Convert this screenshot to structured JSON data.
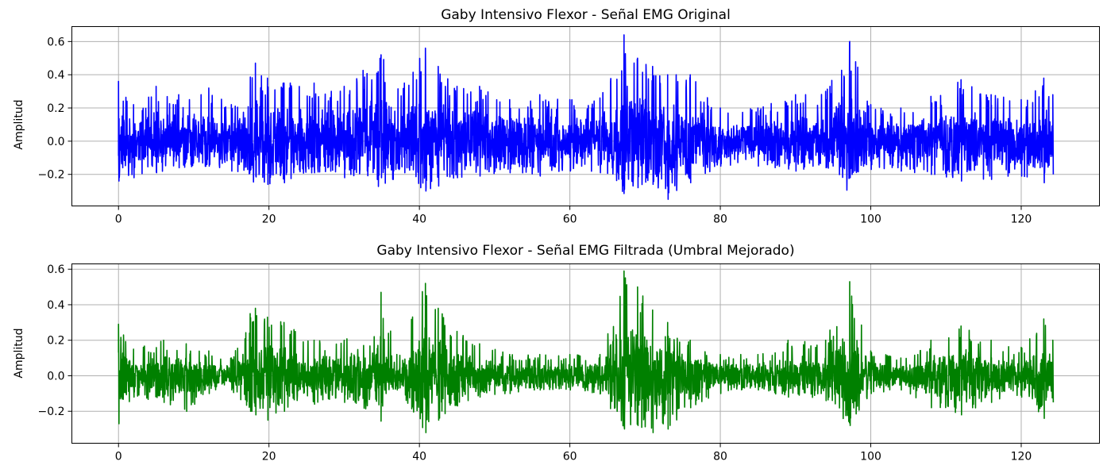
{
  "chart_data": [
    {
      "type": "line",
      "title": "Gaby Intensivo Flexor - Señal EMG Original",
      "xlabel": "",
      "ylabel": "Amplitud",
      "xlim": [
        -6.2,
        130.4
      ],
      "ylim": [
        -0.39,
        0.69
      ],
      "x_ticks": [
        0,
        20,
        40,
        60,
        80,
        100,
        120
      ],
      "x_tick_labels": [
        "0",
        "20",
        "40",
        "60",
        "80",
        "100",
        "120"
      ],
      "y_ticks": [
        -0.2,
        0.0,
        0.2,
        0.4,
        0.6
      ],
      "y_tick_labels": [
        "−0.2",
        "0.0",
        "0.2",
        "0.4",
        "0.6"
      ],
      "grid": true,
      "color": "#0000ff",
      "series": [
        {
          "x_range": [
            0,
            124.2
          ],
          "envelope": [
            {
              "x": 0,
              "max": 0.36,
              "min": -0.24
            },
            {
              "x": 2,
              "max": 0.22,
              "min": -0.22
            },
            {
              "x": 5,
              "max": 0.33,
              "min": -0.19
            },
            {
              "x": 8,
              "max": 0.28,
              "min": -0.16
            },
            {
              "x": 12,
              "max": 0.32,
              "min": -0.15
            },
            {
              "x": 15,
              "max": 0.22,
              "min": -0.18
            },
            {
              "x": 18.2,
              "max": 0.47,
              "min": -0.21
            },
            {
              "x": 19.8,
              "max": 0.38,
              "min": -0.26
            },
            {
              "x": 22,
              "max": 0.35,
              "min": -0.25
            },
            {
              "x": 26,
              "max": 0.35,
              "min": -0.19
            },
            {
              "x": 30,
              "max": 0.33,
              "min": -0.22
            },
            {
              "x": 34.9,
              "max": 0.52,
              "min": -0.22
            },
            {
              "x": 38,
              "max": 0.35,
              "min": -0.19
            },
            {
              "x": 40.8,
              "max": 0.56,
              "min": -0.3
            },
            {
              "x": 42.5,
              "max": 0.45,
              "min": -0.27
            },
            {
              "x": 45,
              "max": 0.33,
              "min": -0.22
            },
            {
              "x": 48,
              "max": 0.33,
              "min": -0.21
            },
            {
              "x": 52,
              "max": 0.25,
              "min": -0.19
            },
            {
              "x": 56,
              "max": 0.28,
              "min": -0.21
            },
            {
              "x": 60,
              "max": 0.25,
              "min": -0.18
            },
            {
              "x": 64,
              "max": 0.26,
              "min": -0.19
            },
            {
              "x": 67.2,
              "max": 0.64,
              "min": -0.29
            },
            {
              "x": 69,
              "max": 0.5,
              "min": -0.28
            },
            {
              "x": 71,
              "max": 0.45,
              "min": -0.26
            },
            {
              "x": 73,
              "max": 0.4,
              "min": -0.35
            },
            {
              "x": 76,
              "max": 0.4,
              "min": -0.25
            },
            {
              "x": 80,
              "max": 0.2,
              "min": -0.15
            },
            {
              "x": 85,
              "max": 0.2,
              "min": -0.15
            },
            {
              "x": 90,
              "max": 0.28,
              "min": -0.18
            },
            {
              "x": 94,
              "max": 0.3,
              "min": -0.16
            },
            {
              "x": 97.2,
              "max": 0.6,
              "min": -0.22
            },
            {
              "x": 100,
              "max": 0.22,
              "min": -0.17
            },
            {
              "x": 104,
              "max": 0.2,
              "min": -0.18
            },
            {
              "x": 108,
              "max": 0.27,
              "min": -0.2
            },
            {
              "x": 112,
              "max": 0.37,
              "min": -0.24
            },
            {
              "x": 116,
              "max": 0.28,
              "min": -0.23
            },
            {
              "x": 120,
              "max": 0.25,
              "min": -0.21
            },
            {
              "x": 123,
              "max": 0.38,
              "min": -0.25
            },
            {
              "x": 124.2,
              "max": 0.28,
              "min": -0.2
            }
          ]
        }
      ]
    },
    {
      "type": "line",
      "title": "Gaby Intensivo Flexor - Señal EMG Filtrada (Umbral Mejorado)",
      "xlabel": "",
      "ylabel": "Amplitud",
      "xlim": [
        -6.2,
        130.4
      ],
      "ylim": [
        -0.38,
        0.63
      ],
      "x_ticks": [
        0,
        20,
        40,
        60,
        80,
        100,
        120
      ],
      "x_tick_labels": [
        "0",
        "20",
        "40",
        "60",
        "80",
        "100",
        "120"
      ],
      "y_ticks": [
        -0.2,
        0.0,
        0.2,
        0.4,
        0.6
      ],
      "y_tick_labels": [
        "−0.2",
        "0.0",
        "0.2",
        "0.4",
        "0.6"
      ],
      "grid": true,
      "color": "#008000",
      "series": [
        {
          "x_range": [
            0,
            124.2
          ],
          "envelope": [
            {
              "x": 0,
              "max": 0.29,
              "min": -0.27
            },
            {
              "x": 2,
              "max": 0.15,
              "min": -0.12
            },
            {
              "x": 6,
              "max": 0.2,
              "min": -0.15
            },
            {
              "x": 9,
              "max": 0.18,
              "min": -0.2
            },
            {
              "x": 12,
              "max": 0.14,
              "min": -0.1
            },
            {
              "x": 15,
              "max": 0.1,
              "min": -0.08
            },
            {
              "x": 17.5,
              "max": 0.35,
              "min": -0.2
            },
            {
              "x": 18.2,
              "max": 0.38,
              "min": -0.22
            },
            {
              "x": 19.8,
              "max": 0.33,
              "min": -0.25
            },
            {
              "x": 22,
              "max": 0.3,
              "min": -0.2
            },
            {
              "x": 26,
              "max": 0.2,
              "min": -0.16
            },
            {
              "x": 30,
              "max": 0.2,
              "min": -0.15
            },
            {
              "x": 34.9,
              "max": 0.47,
              "min": -0.15
            },
            {
              "x": 37,
              "max": 0.12,
              "min": -0.08
            },
            {
              "x": 40.8,
              "max": 0.52,
              "min": -0.32
            },
            {
              "x": 42.5,
              "max": 0.38,
              "min": -0.25
            },
            {
              "x": 45,
              "max": 0.25,
              "min": -0.17
            },
            {
              "x": 48,
              "max": 0.18,
              "min": -0.12
            },
            {
              "x": 52,
              "max": 0.12,
              "min": -0.1
            },
            {
              "x": 56,
              "max": 0.12,
              "min": -0.08
            },
            {
              "x": 60,
              "max": 0.12,
              "min": -0.08
            },
            {
              "x": 64,
              "max": 0.12,
              "min": -0.1
            },
            {
              "x": 67.2,
              "max": 0.59,
              "min": -0.3
            },
            {
              "x": 69,
              "max": 0.5,
              "min": -0.28
            },
            {
              "x": 71,
              "max": 0.37,
              "min": -0.32
            },
            {
              "x": 73,
              "max": 0.3,
              "min": -0.3
            },
            {
              "x": 76,
              "max": 0.2,
              "min": -0.18
            },
            {
              "x": 80,
              "max": 0.12,
              "min": -0.1
            },
            {
              "x": 85,
              "max": 0.12,
              "min": -0.08
            },
            {
              "x": 89,
              "max": 0.2,
              "min": -0.12
            },
            {
              "x": 94,
              "max": 0.2,
              "min": -0.14
            },
            {
              "x": 97.2,
              "max": 0.53,
              "min": -0.28
            },
            {
              "x": 100,
              "max": 0.14,
              "min": -0.1
            },
            {
              "x": 104,
              "max": 0.1,
              "min": -0.08
            },
            {
              "x": 108,
              "max": 0.2,
              "min": -0.18
            },
            {
              "x": 112,
              "max": 0.28,
              "min": -0.22
            },
            {
              "x": 116,
              "max": 0.2,
              "min": -0.15
            },
            {
              "x": 120,
              "max": 0.16,
              "min": -0.12
            },
            {
              "x": 123,
              "max": 0.32,
              "min": -0.24
            },
            {
              "x": 124.2,
              "max": 0.2,
              "min": -0.15
            }
          ]
        }
      ]
    }
  ]
}
